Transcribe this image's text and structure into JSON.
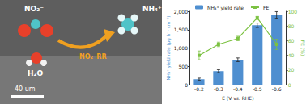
{
  "chart_data": {
    "type": "bar",
    "annotations": {
      "reactant": "NO₂⁻",
      "water": "H₂O",
      "product": "NH₄⁺",
      "process": "NO₂⁻RR",
      "scale_bar": "40 um"
    },
    "x_label": "E (V vs. RHE)",
    "y_label": "NH₄⁺ yield rate (μg h⁻¹ cm⁻²)",
    "y2_label": "FE (%)",
    "categories": [
      "-0.2",
      "-0.3",
      "-0.4",
      "-0.5",
      "-0.6"
    ],
    "series": [
      {
        "name": "NH₄⁺ yield rate",
        "type": "bar",
        "color": "#4f8fd0",
        "values": [
          150,
          370,
          680,
          1620,
          1900
        ],
        "errors": [
          30,
          40,
          50,
          60,
          90
        ]
      },
      {
        "name": "FE",
        "type": "line",
        "axis": "y2",
        "color": "#7cc242",
        "marker": "square",
        "values": [
          40,
          55,
          63,
          91,
          55
        ],
        "errors": [
          6,
          3,
          3,
          2,
          7
        ]
      }
    ],
    "ylim": [
      0,
      2000
    ],
    "yticks": [
      0,
      500,
      1000,
      1500,
      2000
    ],
    "y2lim": [
      0,
      100
    ],
    "y2ticks": [
      0,
      20,
      40,
      60,
      80,
      100
    ],
    "legend": "top"
  }
}
